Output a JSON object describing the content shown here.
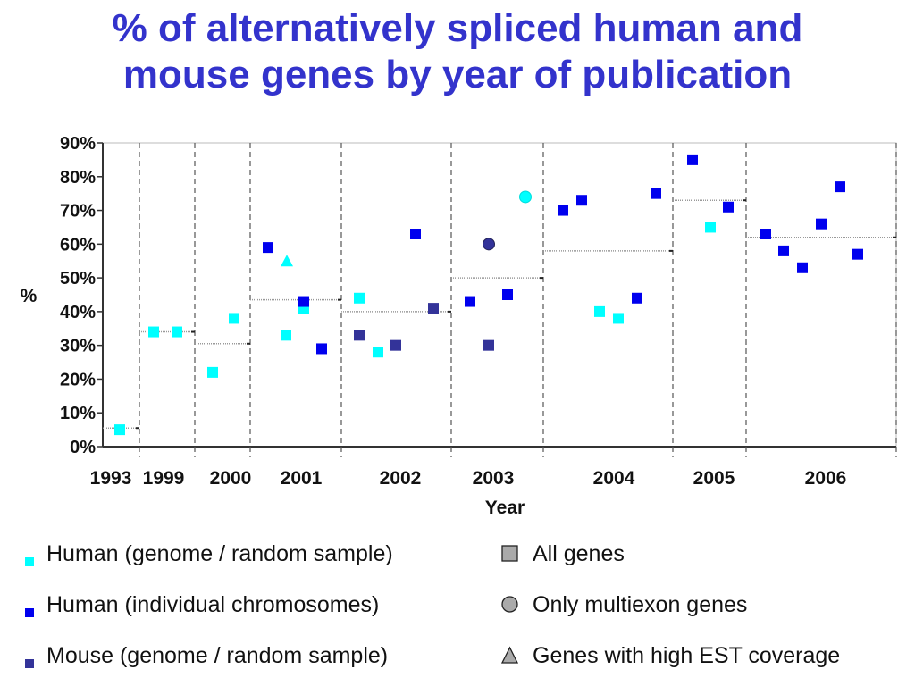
{
  "title_lines": [
    "% of alternatively spliced human and",
    "mouse genes by year of publication"
  ],
  "colors": {
    "human_genome": "#00ffff",
    "human_chromosomes": "#0000ee",
    "mouse_genome": "#333399",
    "axis": "#333333",
    "mean_line": "#999999",
    "legend_shape": "#aaaaaa"
  },
  "legend": {
    "series": [
      {
        "label": "Human (genome / random sample)",
        "color": "#00ffff"
      },
      {
        "label": "Human (individual chromosomes)",
        "color": "#0000ee"
      },
      {
        "label": "Mouse (genome / random sample)",
        "color": "#333399"
      }
    ],
    "shapes": [
      {
        "label": "All genes",
        "shape": "square"
      },
      {
        "label": "Only multiexon genes",
        "shape": "circle"
      },
      {
        "label": "Genes with high EST coverage",
        "shape": "triangle"
      }
    ]
  },
  "chart_data": {
    "type": "scatter",
    "title": "% of alternatively spliced human and mouse genes by year of publication",
    "xlabel": "Year",
    "ylabel": "%",
    "ylim": [
      0,
      90
    ],
    "yticks": [
      "0%",
      "10%",
      "20%",
      "30%",
      "40%",
      "50%",
      "60%",
      "70%",
      "80%",
      "90%"
    ],
    "grid": false,
    "categories": [
      "1993",
      "1999",
      "2000",
      "2001",
      "2002",
      "2003",
      "2004",
      "2005",
      "2006"
    ],
    "year_means": [
      {
        "year": "1993",
        "value": 5.5
      },
      {
        "year": "1999",
        "value": 34
      },
      {
        "year": "2000",
        "value": 30.5
      },
      {
        "year": "2001",
        "value": 43.5
      },
      {
        "year": "2002",
        "value": 40
      },
      {
        "year": "2003",
        "value": 50
      },
      {
        "year": "2004",
        "value": 58
      },
      {
        "year": "2005",
        "value": 73
      },
      {
        "year": "2006",
        "value": 62
      }
    ],
    "series": [
      {
        "name": "Human (genome / random sample)",
        "points": [
          {
            "year": "1993",
            "y": 5,
            "shape": "square"
          },
          {
            "year": "1999",
            "y": 34,
            "shape": "square"
          },
          {
            "year": "1999",
            "y": 34,
            "shape": "square"
          },
          {
            "year": "2000",
            "y": 22,
            "shape": "square"
          },
          {
            "year": "2000",
            "y": 38,
            "shape": "square"
          },
          {
            "year": "2001",
            "y": 55,
            "shape": "triangle"
          },
          {
            "year": "2001",
            "y": 41,
            "shape": "square"
          },
          {
            "year": "2001",
            "y": 33,
            "shape": "square"
          },
          {
            "year": "2002",
            "y": 44,
            "shape": "square"
          },
          {
            "year": "2002",
            "y": 28,
            "shape": "square"
          },
          {
            "year": "2003",
            "y": 74,
            "shape": "circle"
          },
          {
            "year": "2004",
            "y": 40,
            "shape": "square"
          },
          {
            "year": "2004",
            "y": 38,
            "shape": "square"
          },
          {
            "year": "2005",
            "y": 65,
            "shape": "square"
          }
        ]
      },
      {
        "name": "Human (individual chromosomes)",
        "points": [
          {
            "year": "2001",
            "y": 59,
            "shape": "square"
          },
          {
            "year": "2001",
            "y": 43,
            "shape": "square"
          },
          {
            "year": "2001",
            "y": 29,
            "shape": "square"
          },
          {
            "year": "2002",
            "y": 63,
            "shape": "square"
          },
          {
            "year": "2003",
            "y": 43,
            "shape": "square"
          },
          {
            "year": "2003",
            "y": 45,
            "shape": "square"
          },
          {
            "year": "2004",
            "y": 70,
            "shape": "square"
          },
          {
            "year": "2004",
            "y": 73,
            "shape": "square"
          },
          {
            "year": "2004",
            "y": 44,
            "shape": "square"
          },
          {
            "year": "2004",
            "y": 75,
            "shape": "square"
          },
          {
            "year": "2005",
            "y": 85,
            "shape": "square"
          },
          {
            "year": "2005",
            "y": 71,
            "shape": "square"
          },
          {
            "year": "2006",
            "y": 63,
            "shape": "square"
          },
          {
            "year": "2006",
            "y": 58,
            "shape": "square"
          },
          {
            "year": "2006",
            "y": 53,
            "shape": "square"
          },
          {
            "year": "2006",
            "y": 66,
            "shape": "square"
          },
          {
            "year": "2006",
            "y": 77,
            "shape": "square"
          },
          {
            "year": "2006",
            "y": 57,
            "shape": "square"
          }
        ]
      },
      {
        "name": "Mouse (genome / random sample)",
        "points": [
          {
            "year": "2002",
            "y": 33,
            "shape": "square"
          },
          {
            "year": "2002",
            "y": 30,
            "shape": "square"
          },
          {
            "year": "2002",
            "y": 41,
            "shape": "square"
          },
          {
            "year": "2003",
            "y": 60,
            "shape": "circle"
          },
          {
            "year": "2003",
            "y": 30,
            "shape": "square"
          }
        ]
      }
    ]
  }
}
